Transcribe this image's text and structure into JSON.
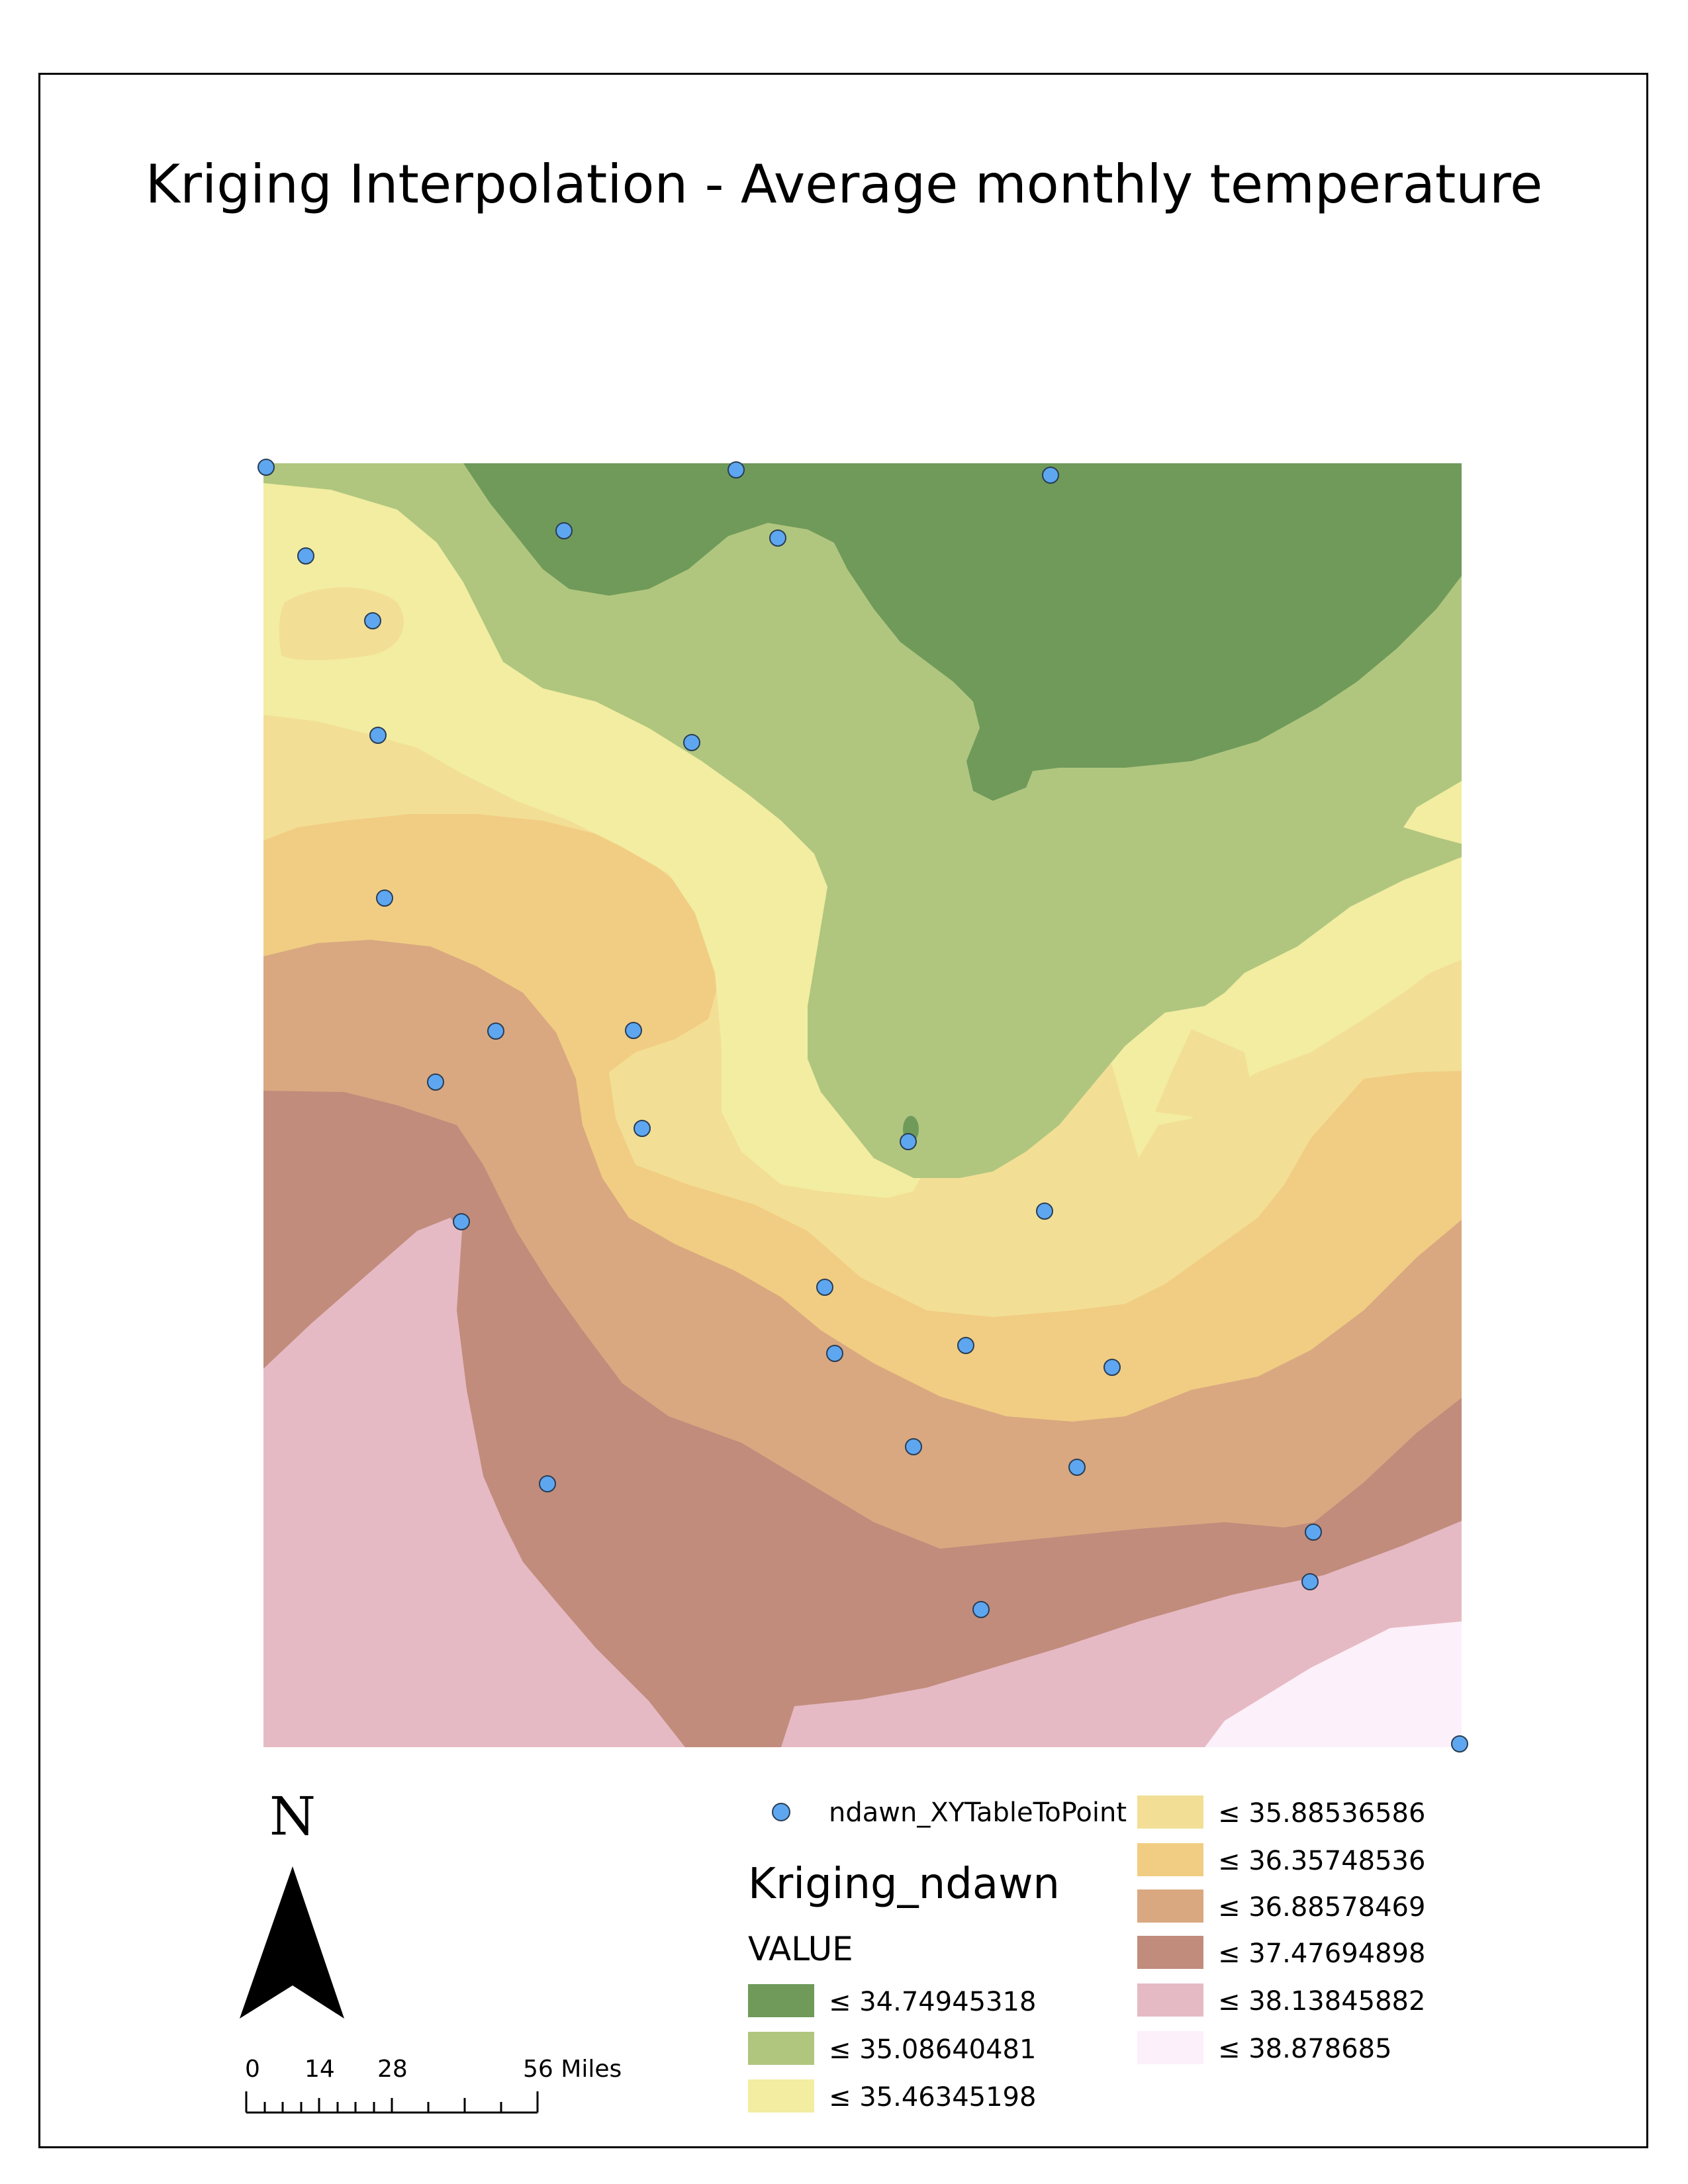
{
  "map": {
    "title": "Kriging Interpolation - Average monthly temperature"
  },
  "legend": {
    "points_layer": "ndawn_XYTableToPoint",
    "raster_layer": "Kriging_ndawn",
    "field": "VALUE",
    "classes": [
      {
        "label": "≤ 34.74945318",
        "color": "#6f9a5a"
      },
      {
        "label": "≤ 35.08640481",
        "color": "#b0c67f"
      },
      {
        "label": "≤ 35.46345198",
        "color": "#f2eda1"
      },
      {
        "label": "≤ 35.88536586",
        "color": "#f2df95"
      },
      {
        "label": "≤ 36.35748536",
        "color": "#f1cd83"
      },
      {
        "label": "≤ 36.88578469",
        "color": "#d9a880"
      },
      {
        "label": "≤ 37.47694898",
        "color": "#c18c7c"
      },
      {
        "label": "≤ 38.13845882",
        "color": "#e6bac4"
      },
      {
        "label": "≤ 38.878685",
        "color": "#fcf0fa"
      }
    ],
    "point_color": "#5ea7f0"
  },
  "north_arrow": {
    "label": "N"
  },
  "scale_bar": {
    "labels": [
      "0",
      "14",
      "28",
      "56 Miles"
    ]
  }
}
